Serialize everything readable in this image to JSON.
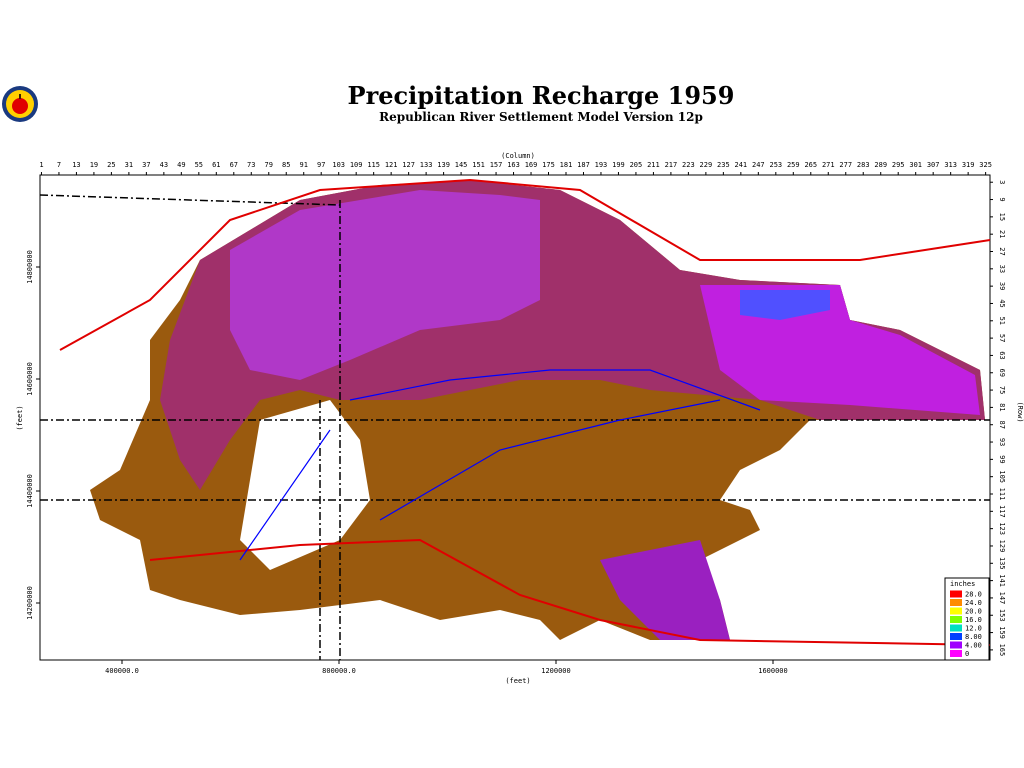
{
  "map": {
    "title": "Precipitation Recharge 1959",
    "subtitle": "Republican River Settlement Model Version 12p",
    "column_label": "(Column)",
    "row_label": "(Row)",
    "x_feet_label": "(feet)",
    "y_feet_label": "(feet)",
    "columns": [
      1,
      7,
      13,
      19,
      25,
      31,
      37,
      43,
      49,
      55,
      61,
      67,
      73,
      79,
      85,
      91,
      97,
      103,
      109,
      115,
      121,
      127,
      133,
      139,
      145,
      151,
      157,
      163,
      169,
      175,
      181,
      187,
      193,
      199,
      205,
      211,
      217,
      223,
      229,
      235,
      241,
      247,
      253,
      259,
      265,
      271,
      277,
      283,
      289,
      295,
      301,
      307,
      313,
      319,
      325
    ],
    "rows": [
      3,
      9,
      15,
      21,
      27,
      33,
      39,
      45,
      51,
      57,
      63,
      69,
      75,
      81,
      87,
      93,
      99,
      105,
      111,
      117,
      123,
      129,
      135,
      141,
      147,
      153,
      159,
      165
    ],
    "xticks": [
      {
        "value": 400000,
        "label": "400000.0"
      },
      {
        "value": 800000,
        "label": "800000.0"
      },
      1200000,
      1600000
    ],
    "yticks": [
      14800000,
      14600000,
      14400000,
      14200000
    ],
    "legend": {
      "title": "inches",
      "entries": [
        {
          "value": 28,
          "label": "28.0",
          "color": "#ff0000"
        },
        {
          "value": 24,
          "label": "24.0",
          "color": "#ff8c00"
        },
        {
          "value": 20,
          "label": "20.0",
          "color": "#ffff00"
        },
        {
          "value": 16,
          "label": "16.0",
          "color": "#80ff00"
        },
        {
          "value": 12,
          "label": "12.0",
          "color": "#00e0c0"
        },
        {
          "value": 8,
          "label": "8.00",
          "color": "#0040ff"
        },
        {
          "value": 4,
          "label": "4.00",
          "color": "#a000ff"
        },
        {
          "value": 0,
          "label": "0",
          "color": "#ff00ff"
        }
      ]
    }
  }
}
